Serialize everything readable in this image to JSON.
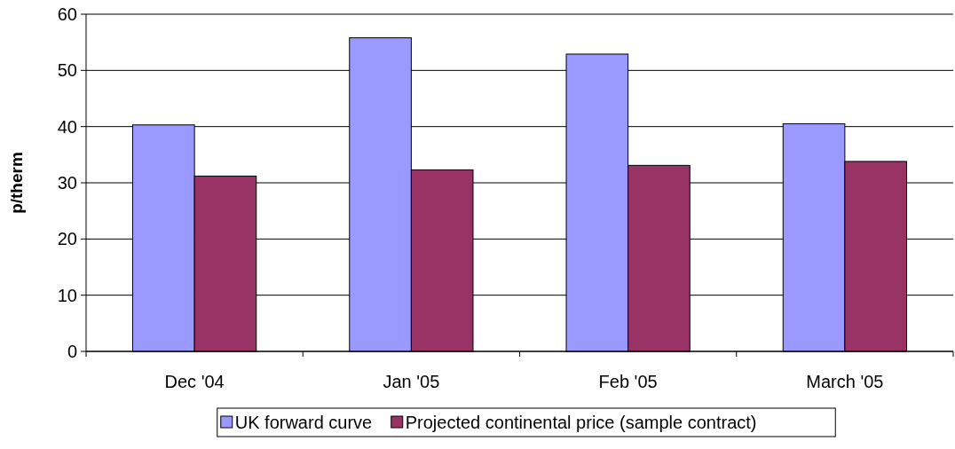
{
  "chart_data": {
    "type": "bar",
    "ylabel": "p/therm",
    "categories": [
      "Dec '04",
      "Jan '05",
      "Feb '05",
      "March '05"
    ],
    "series": [
      {
        "name": "UK forward curve",
        "color": "#9999ff",
        "values": [
          40.3,
          55.8,
          52.9,
          40.5
        ]
      },
      {
        "name": "Projected continental price (sample contract)",
        "color": "#993366",
        "values": [
          31.2,
          32.3,
          33.1,
          33.8
        ]
      }
    ],
    "ylim": [
      0,
      60
    ],
    "yticks": [
      0,
      10,
      20,
      30,
      40,
      50,
      60
    ],
    "grid": "y",
    "legend": "bottom"
  }
}
